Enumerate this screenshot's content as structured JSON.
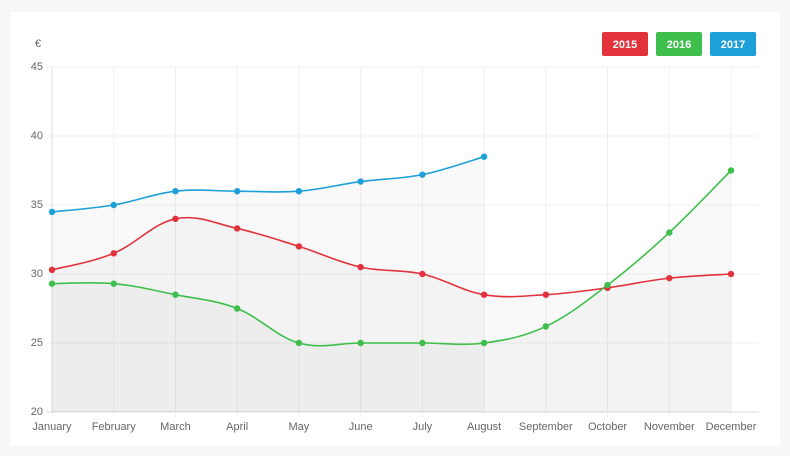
{
  "chart_data": {
    "type": "line",
    "y_label": "€",
    "categories": [
      "January",
      "February",
      "March",
      "April",
      "May",
      "June",
      "July",
      "August",
      "September",
      "October",
      "November",
      "December"
    ],
    "series": [
      {
        "name": "2015",
        "color": "#e2323b",
        "values": [
          30.3,
          31.5,
          34,
          33.3,
          32,
          30.5,
          30,
          28.5,
          28.5,
          29,
          29.7,
          30
        ]
      },
      {
        "name": "2016",
        "color": "#3ebf4c",
        "values": [
          29.3,
          29.3,
          28.5,
          27.5,
          25,
          25,
          25,
          25,
          26.2,
          29.2,
          33,
          37.5
        ]
      },
      {
        "name": "2017",
        "color": "#1d9fd8",
        "values": [
          34.5,
          35,
          36,
          36,
          36,
          36.7,
          37.2,
          38.5,
          null,
          null,
          null,
          null
        ]
      }
    ],
    "ylim": [
      20,
      45
    ],
    "yticks": [
      20,
      25,
      30,
      35,
      40,
      45
    ],
    "grid": true,
    "legend": "top-right"
  }
}
